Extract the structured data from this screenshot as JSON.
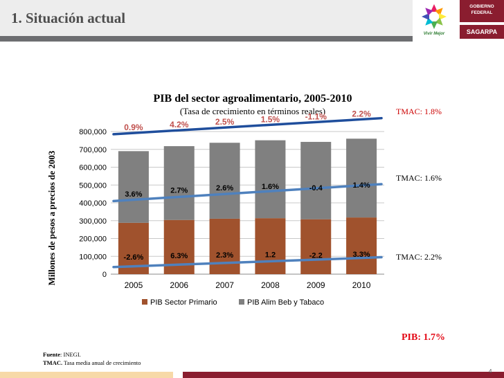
{
  "header": {
    "title": "1. Situación actual"
  },
  "logos": {
    "gobierno": "GOBIERNO FEDERAL",
    "sagarpa": "SAGARPA",
    "vivir": "Vivir Mejor"
  },
  "chart_data": {
    "type": "bar",
    "stacked": true,
    "title": "PIB del sector agroalimentario, 2005-2010",
    "subtitle": "(Tasa de crecimiento en términos reales)",
    "ylabel": "Millones de pesos a precios de 2003",
    "categories": [
      "2005",
      "2006",
      "2007",
      "2008",
      "2009",
      "2010"
    ],
    "ylim": [
      0,
      800000
    ],
    "yticks": [
      "0",
      "100,000",
      "200,000",
      "300,000",
      "400,000",
      "500,000",
      "600,000",
      "700,000",
      "800,000"
    ],
    "grid": true,
    "legend": "bottom",
    "series": [
      {
        "name": "PIB Sector Primario",
        "color": "#a0522d",
        "values": [
          288000,
          304000,
          311000,
          314000,
          308000,
          318000
        ]
      },
      {
        "name": "PIB Alim Beb y Tabaco",
        "color": "#808080",
        "values": [
          402000,
          414000,
          426000,
          437000,
          434000,
          442000
        ]
      }
    ],
    "growth_labels": {
      "total": [
        "0.9%",
        "4.2%",
        "2.5%",
        "1.5%",
        "-1.1%",
        "2.2%"
      ],
      "alim": [
        "3.6%",
        "2.7%",
        "2.6%",
        "1.6%",
        "-0.4",
        "1.4%"
      ],
      "primario": [
        "-2.6%",
        "6.3%",
        "2.3%",
        "1.2",
        "-2.2",
        "3.3%"
      ]
    },
    "trend_lines": [
      {
        "series": "total",
        "start": 785000,
        "end": 875000,
        "color": "#1f4e9c"
      },
      {
        "series": "alim",
        "start": 410000,
        "end": 505000,
        "color": "#4f81bd"
      },
      {
        "series": "primario",
        "start": 40000,
        "end": 95000,
        "color": "#4f81bd"
      }
    ]
  },
  "annotations": {
    "tmac_total": "TMAC: 1.8%",
    "tmac_alim": "TMAC: 1.6%",
    "tmac_primario": "TMAC: 2.2%",
    "pib": "PIB: 1.7%"
  },
  "footer": {
    "fuente_label": "Fuente",
    "fuente_text": ": INEGI.",
    "tmac_label": "TMAC.",
    "tmac_text": " Tasa media anual de crecimiento",
    "page": "4"
  }
}
